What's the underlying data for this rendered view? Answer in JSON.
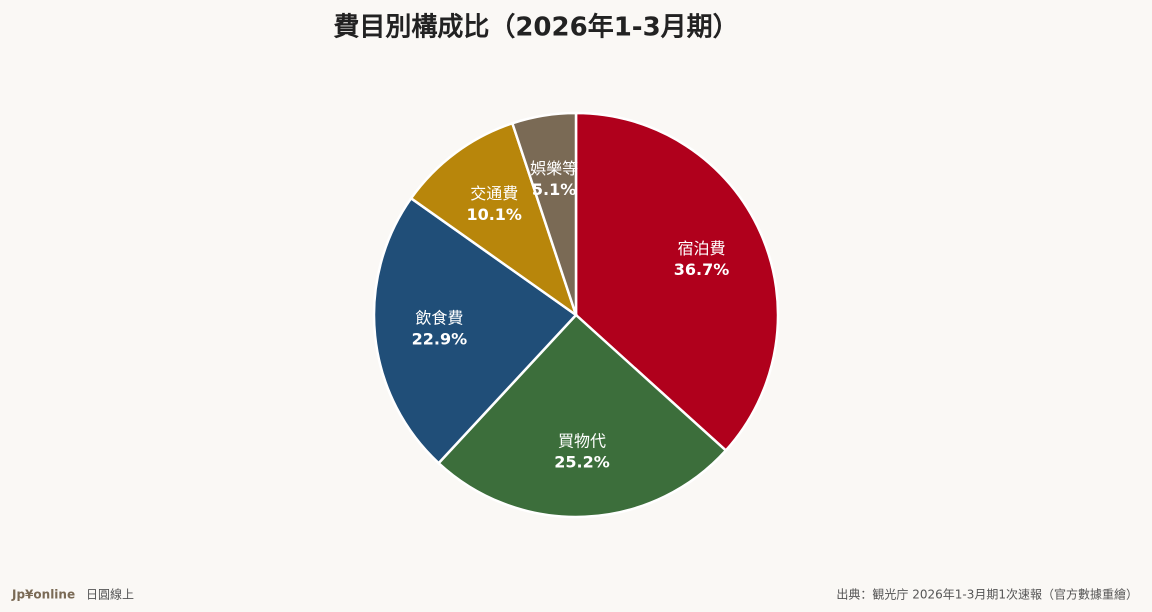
{
  "chart_data": {
    "type": "pie",
    "title": "費目別構成比（2026年1-3月期）",
    "categories": [
      "宿泊費",
      "買物代",
      "飲食費",
      "交通費",
      "娯樂等"
    ],
    "values": [
      36.7,
      25.2,
      22.9,
      10.1,
      5.1
    ],
    "value_labels": [
      "36.7%",
      "25.2%",
      "22.9%",
      "10.1%",
      "5.1%"
    ],
    "colors": [
      "#b0001c",
      "#3c6e3b",
      "#204e78",
      "#b8860b",
      "#7a6a55"
    ]
  },
  "footer": {
    "brand": "Jp¥online",
    "tagline": "日圓線上",
    "source": "出典：観光庁 2026年1-3月期1次速報（官方數據重繪）"
  }
}
